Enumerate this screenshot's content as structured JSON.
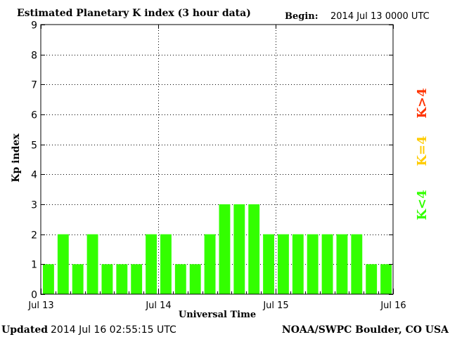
{
  "header": {
    "title": "Estimated Planetary K index (3 hour data)",
    "begin_label": "Begin:",
    "begin_value": "2014 Jul 13 0000 UTC"
  },
  "footer": {
    "updated_label": "Updated",
    "updated_value": "2014 Jul 16 02:55:15 UTC",
    "source": "NOAA/SWPC Boulder, CO USA"
  },
  "legend": {
    "gt4": "K>4",
    "eq4": "K=4",
    "lt4": "K<4"
  },
  "colors": {
    "bar_fill": "#33ff00",
    "legend_gt4": "#ff3300",
    "legend_eq4": "#ffcc00",
    "legend_lt4": "#33ff00",
    "axis": "#000000",
    "grid": "#000000"
  },
  "chart_data": {
    "type": "bar",
    "title": "Estimated Planetary K index (3 hour data)",
    "xlabel": "Universal Time",
    "ylabel": "Kp index",
    "ylim": [
      0,
      9
    ],
    "yticks": [
      "0",
      "1",
      "2",
      "3",
      "4",
      "5",
      "6",
      "7",
      "8",
      "9"
    ],
    "xticks": [
      "Jul 13",
      "Jul 14",
      "Jul 15",
      "Jul 16"
    ],
    "grid": true,
    "values": [
      1,
      2,
      1,
      2,
      1,
      1,
      1,
      2,
      2,
      1,
      1,
      2,
      3,
      3,
      3,
      2,
      2,
      2,
      2,
      2,
      2,
      2,
      1,
      1
    ]
  }
}
